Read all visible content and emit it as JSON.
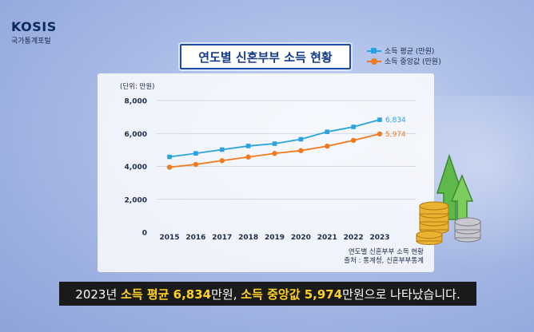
{
  "logo": {
    "brand": "KOSIS",
    "sub": "국가통계포털"
  },
  "title": "연도별 신혼부부 소득 현황",
  "legend": [
    {
      "label": "소득 평균 (만원)",
      "color": "#2aa3e0",
      "marker": "square"
    },
    {
      "label": "소득 중앙값 (만원)",
      "color": "#f07a1f",
      "marker": "circle"
    }
  ],
  "chart_data": {
    "type": "line",
    "unit_label": "(단위: 만원)",
    "x": [
      "2015",
      "2016",
      "2017",
      "2018",
      "2019",
      "2020",
      "2021",
      "2022",
      "2023"
    ],
    "ylim": [
      0,
      8000
    ],
    "yticks": [
      "0",
      "2,000",
      "4,000",
      "6,000",
      "8,000"
    ],
    "grid": true,
    "series": [
      {
        "name": "소득 평균 (만원)",
        "color": "#2aa3e0",
        "values": [
          4580,
          4790,
          5020,
          5240,
          5380,
          5650,
          6100,
          6400,
          6834
        ]
      },
      {
        "name": "소득 중앙값 (만원)",
        "color": "#f07a1f",
        "values": [
          3950,
          4120,
          4350,
          4570,
          4790,
          4960,
          5230,
          5580,
          5974
        ]
      }
    ],
    "end_labels": [
      "6,834",
      "5,974"
    ]
  },
  "source": {
    "line1": "연도별 신혼부부 소득 현황",
    "line2": "출처 : 통계청, 신혼부부통계"
  },
  "subtitle": {
    "p1": "2023년 ",
    "h1": "소득 평균 6,834",
    "p2": "만원, ",
    "h2": "소득 중앙값 5,974",
    "p3": "만원으로 나타났습니다."
  }
}
